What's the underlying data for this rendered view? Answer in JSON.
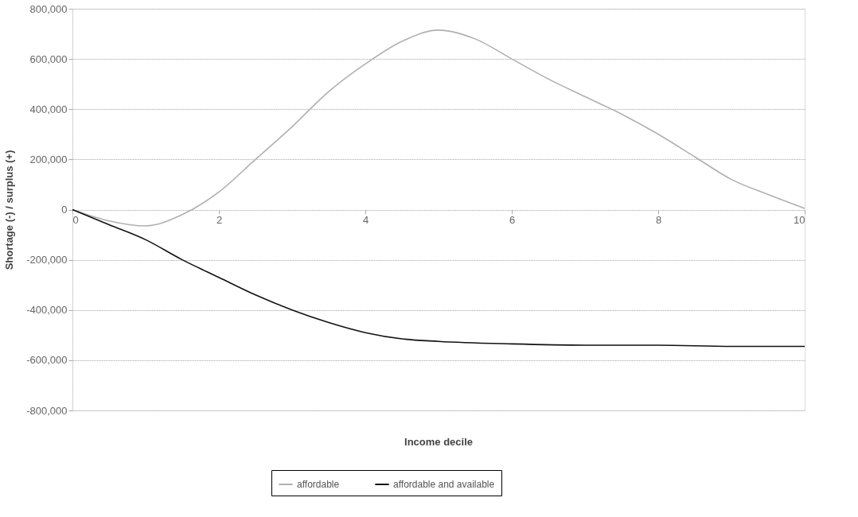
{
  "chart_data": {
    "type": "line",
    "xlabel": "Income decile",
    "ylabel": "Shortage (-) / surplus (+)",
    "xlim": [
      0,
      10
    ],
    "xticks": [
      0,
      2,
      4,
      6,
      8,
      10
    ],
    "ylim": [
      -800000,
      800000
    ],
    "yticks": [
      {
        "value": -800000,
        "label": "-800,000"
      },
      {
        "value": -600000,
        "label": "-600,000"
      },
      {
        "value": -400000,
        "label": "-400,000"
      },
      {
        "value": -200000,
        "label": "-200,000"
      },
      0,
      {
        "value": 200000,
        "label": "200,000"
      },
      {
        "value": 400000,
        "label": "400,000"
      },
      {
        "value": 600000,
        "label": "600,000"
      },
      {
        "value": 800000,
        "label": "800,000"
      }
    ],
    "grid": "y",
    "legend": "bottom",
    "marker": "none",
    "line_style": "solid",
    "series": [
      {
        "name": "affordable",
        "color": "#b0b0b0",
        "x": [
          0,
          0.5,
          1,
          1.5,
          2,
          2.5,
          3,
          3.5,
          4,
          4.5,
          5,
          5.5,
          6,
          6.5,
          7,
          7.5,
          8,
          8.5,
          9,
          9.5,
          10
        ],
        "values": [
          0,
          -45000,
          -65000,
          -20000,
          70000,
          200000,
          330000,
          470000,
          580000,
          670000,
          715000,
          680000,
          600000,
          520000,
          450000,
          380000,
          300000,
          210000,
          120000,
          60000,
          5000
        ]
      },
      {
        "name": "affordable and available",
        "color": "#111111",
        "x": [
          0,
          0.5,
          1,
          1.5,
          2,
          2.5,
          3,
          3.5,
          4,
          4.5,
          5,
          6,
          7,
          8,
          9,
          10
        ],
        "values": [
          0,
          -60000,
          -120000,
          -200000,
          -270000,
          -340000,
          -400000,
          -450000,
          -490000,
          -515000,
          -525000,
          -535000,
          -540000,
          -540000,
          -545000,
          -545000
        ]
      }
    ]
  }
}
